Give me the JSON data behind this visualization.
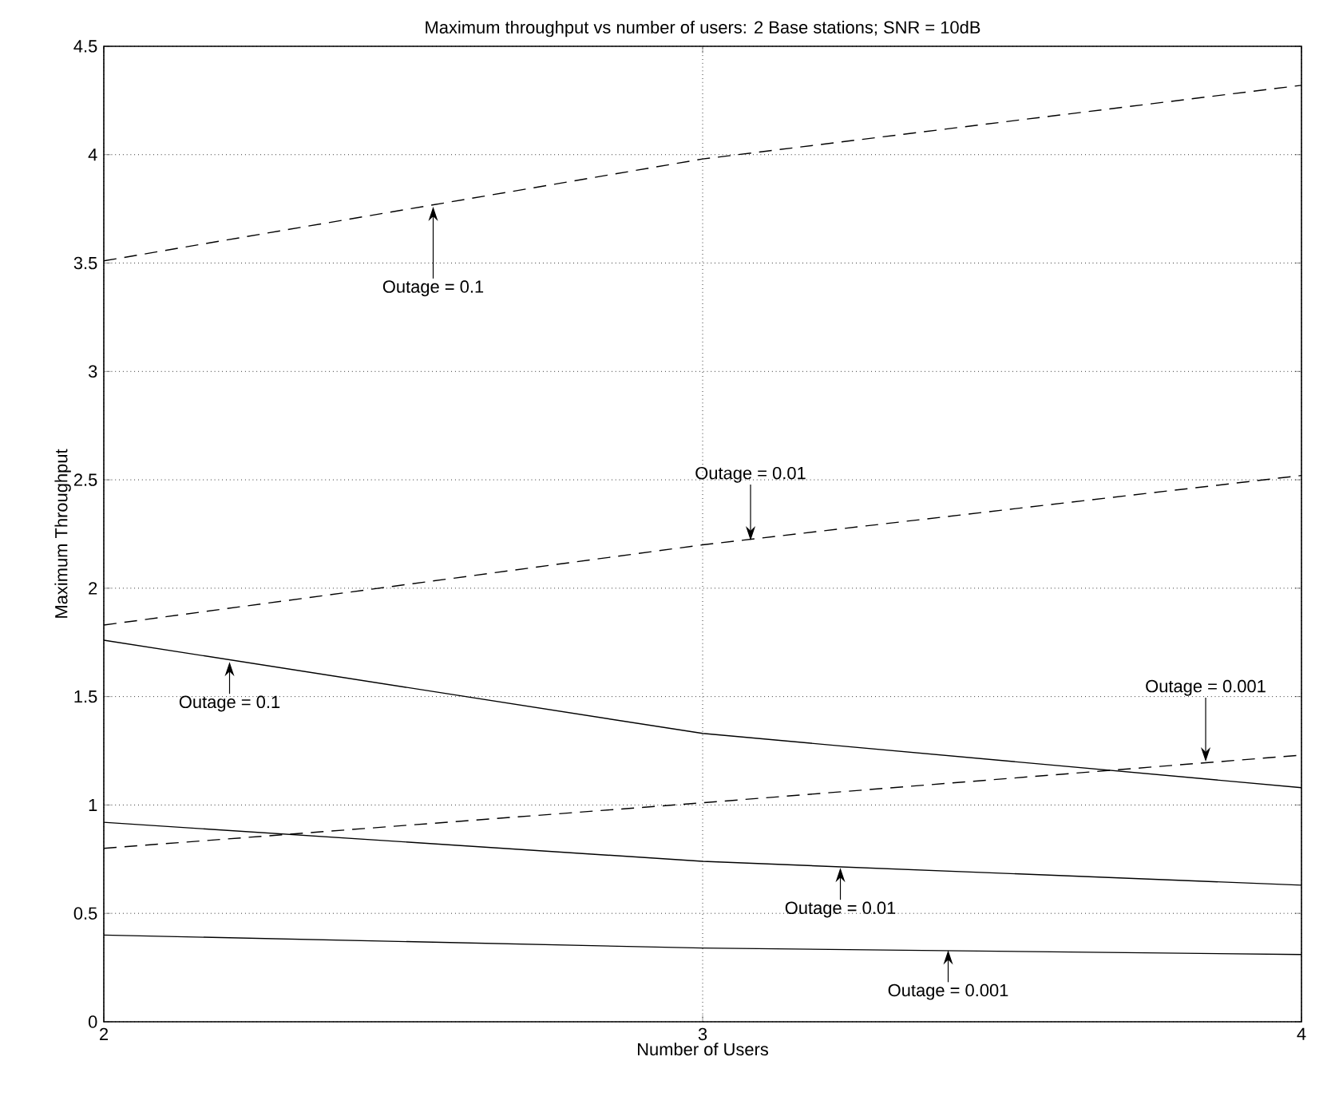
{
  "chart_data": {
    "type": "line",
    "title": "Maximum throughput vs number of users: 2 Base stations; SNR = 10dB",
    "xlabel": "Number of Users",
    "ylabel": "Maximum Throughput",
    "x": [
      2,
      3,
      4
    ],
    "series": [
      {
        "color": "#000000",
        "line_style": "dashed",
        "values": [
          3.51,
          3.98,
          4.32
        ]
      },
      {
        "color": "#000000",
        "line_style": "dashed",
        "values": [
          1.83,
          2.2,
          2.52
        ]
      },
      {
        "color": "#000000",
        "line_style": "dashed",
        "values": [
          0.8,
          1.01,
          1.23
        ]
      },
      {
        "color": "#000000",
        "line_style": "solid",
        "values": [
          1.76,
          1.33,
          1.08
        ]
      },
      {
        "color": "#000000",
        "line_style": "solid",
        "values": [
          0.92,
          0.74,
          0.63
        ]
      },
      {
        "color": "#000000",
        "line_style": "solid",
        "values": [
          0.4,
          0.34,
          0.31
        ]
      }
    ],
    "annotations": [
      {
        "text": "Outage = 0.1",
        "x": 2.55,
        "y": 3.76
      },
      {
        "text": "Outage = 0.01",
        "x": 3.08,
        "y": 2.22
      },
      {
        "text": "Outage = 0.1",
        "x": 2.21,
        "y": 1.66
      },
      {
        "text": "Outage = 0.001",
        "x": 3.84,
        "y": 1.2
      },
      {
        "text": "Outage = 0.01",
        "x": 3.23,
        "y": 0.71
      },
      {
        "text": "Outage = 0.001",
        "x": 3.41,
        "y": 0.33
      }
    ],
    "xlim": [
      2,
      4
    ],
    "ylim": [
      0,
      4.5
    ],
    "xticks": [
      2,
      3,
      4
    ],
    "yticks": [
      0,
      0.5,
      1,
      1.5,
      2,
      2.5,
      3,
      3.5,
      4,
      4.5
    ],
    "grid": true,
    "marker": "none"
  }
}
